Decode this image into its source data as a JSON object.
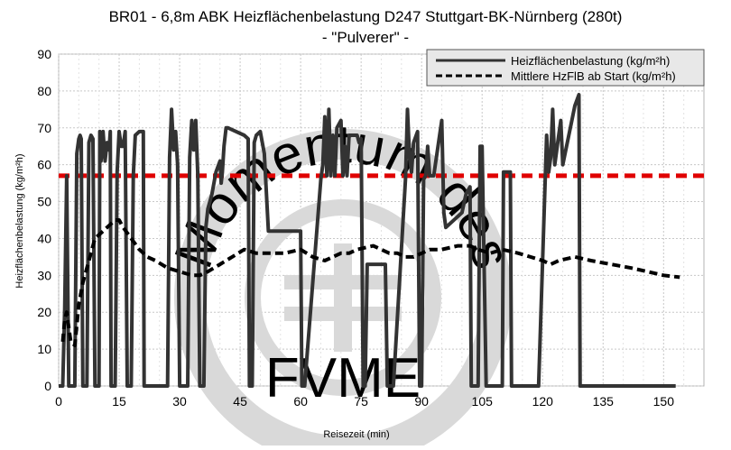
{
  "chart_data": {
    "type": "line",
    "title": "BR01 - 6,8m ABK Heizflächenbelastung D247 Stuttgart-BK-Nürnberg (280t)",
    "subtitle": "- \"Pulverer\" -",
    "xlabel": "Reisezeit (min)",
    "ylabel": "Heizflächenbelastung (kg/m²h)",
    "xlim": [
      0,
      160
    ],
    "ylim": [
      0,
      90
    ],
    "x_ticks": [
      0,
      15,
      30,
      45,
      60,
      75,
      90,
      105,
      120,
      135,
      150
    ],
    "y_ticks": [
      0,
      10,
      20,
      30,
      40,
      50,
      60,
      70,
      80,
      90
    ],
    "grid": true,
    "legend_position": "top-right",
    "reference_line": {
      "y": 57,
      "color": "#e00000",
      "style": "dashed"
    },
    "series": [
      {
        "name": "Heizflächenbelastung (kg/m²h)",
        "color": "#333333",
        "style": "solid",
        "points": [
          [
            0,
            0
          ],
          [
            1,
            0
          ],
          [
            1.5,
            21
          ],
          [
            2,
            57
          ],
          [
            2.5,
            0
          ],
          [
            4,
            0
          ],
          [
            4.5,
            63
          ],
          [
            5,
            67
          ],
          [
            5.3,
            68
          ],
          [
            5.6,
            67
          ],
          [
            6,
            0
          ],
          [
            7,
            0
          ],
          [
            7.5,
            66
          ],
          [
            8,
            68
          ],
          [
            8.5,
            67
          ],
          [
            9,
            0
          ],
          [
            10,
            0
          ],
          [
            10.2,
            69
          ],
          [
            10.5,
            61
          ],
          [
            11,
            69
          ],
          [
            11.5,
            61
          ],
          [
            12,
            66
          ],
          [
            12.5,
            64
          ],
          [
            12.8,
            69
          ],
          [
            13,
            0
          ],
          [
            14,
            0
          ],
          [
            14.5,
            58
          ],
          [
            15,
            69
          ],
          [
            15.5,
            65
          ],
          [
            16,
            65
          ],
          [
            16.5,
            69
          ],
          [
            17,
            0
          ],
          [
            18,
            0
          ],
          [
            18.5,
            57
          ],
          [
            19,
            68
          ],
          [
            20,
            69
          ],
          [
            21,
            69
          ],
          [
            21.2,
            0
          ],
          [
            27,
            0
          ],
          [
            27.5,
            62
          ],
          [
            28,
            75
          ],
          [
            28.5,
            64
          ],
          [
            29,
            69
          ],
          [
            29.5,
            60
          ],
          [
            30,
            0
          ],
          [
            32,
            0
          ],
          [
            32.5,
            62
          ],
          [
            33,
            72
          ],
          [
            33.5,
            64
          ],
          [
            34,
            72
          ],
          [
            34.5,
            57
          ],
          [
            35,
            0
          ],
          [
            36,
            0
          ],
          [
            36.5,
            43
          ],
          [
            37,
            48
          ],
          [
            38,
            52
          ],
          [
            39,
            58
          ],
          [
            40,
            61
          ],
          [
            40.3,
            55
          ],
          [
            40.6,
            58
          ],
          [
            41,
            65
          ],
          [
            41.5,
            70
          ],
          [
            42,
            70
          ],
          [
            46,
            68
          ],
          [
            47,
            67
          ],
          [
            47.3,
            0
          ],
          [
            48,
            0
          ],
          [
            48.5,
            66
          ],
          [
            49,
            68
          ],
          [
            50,
            69
          ],
          [
            51,
            63
          ],
          [
            52,
            42
          ],
          [
            60,
            42
          ],
          [
            60.3,
            0
          ],
          [
            61,
            0
          ],
          [
            65,
            56
          ],
          [
            65.5,
            60
          ],
          [
            66,
            73
          ],
          [
            66.5,
            57
          ],
          [
            67,
            75
          ],
          [
            67.5,
            57
          ],
          [
            68,
            68
          ],
          [
            68.5,
            57
          ],
          [
            69,
            70
          ],
          [
            70,
            72
          ],
          [
            70.5,
            57
          ],
          [
            71,
            65
          ],
          [
            71.5,
            57
          ],
          [
            72,
            68
          ],
          [
            73,
            68
          ],
          [
            74,
            68
          ],
          [
            74.5,
            66
          ],
          [
            75,
            67
          ],
          [
            75.5,
            0
          ],
          [
            76,
            0
          ],
          [
            76.5,
            33
          ],
          [
            81,
            33
          ],
          [
            81.5,
            0
          ],
          [
            83,
            0
          ],
          [
            86,
            56
          ],
          [
            86.5,
            75
          ],
          [
            87,
            62
          ],
          [
            87.5,
            58
          ],
          [
            88,
            66
          ],
          [
            89,
            69
          ],
          [
            89.5,
            0
          ],
          [
            90,
            0
          ],
          [
            90.5,
            56
          ],
          [
            91,
            57
          ],
          [
            91.5,
            65
          ],
          [
            92,
            57
          ],
          [
            93,
            57
          ],
          [
            95,
            72
          ],
          [
            95.5,
            47
          ],
          [
            96,
            43
          ],
          [
            100,
            47
          ],
          [
            101,
            52
          ],
          [
            102,
            54
          ],
          [
            102.3,
            0
          ],
          [
            104,
            0
          ],
          [
            104.5,
            65
          ],
          [
            105,
            65
          ],
          [
            106,
            0
          ],
          [
            110,
            0
          ],
          [
            110.3,
            58
          ],
          [
            112,
            58
          ],
          [
            112.3,
            0
          ],
          [
            119,
            0
          ],
          [
            121,
            68
          ],
          [
            121.5,
            58
          ],
          [
            122,
            62
          ],
          [
            122.5,
            75
          ],
          [
            123,
            60
          ],
          [
            124,
            68
          ],
          [
            124.5,
            72
          ],
          [
            125,
            60
          ],
          [
            128,
            76
          ],
          [
            129,
            79
          ],
          [
            129.3,
            0
          ],
          [
            153,
            0
          ]
        ]
      },
      {
        "name": "Mittlere HzFlB ab Start (kg/m²h)",
        "color": "#000000",
        "style": "dashed",
        "points": [
          [
            1,
            12
          ],
          [
            1.5,
            18
          ],
          [
            2,
            20
          ],
          [
            3,
            12
          ],
          [
            4,
            11
          ],
          [
            5,
            22
          ],
          [
            6,
            28
          ],
          [
            7,
            32
          ],
          [
            8,
            36
          ],
          [
            9,
            40
          ],
          [
            10,
            41
          ],
          [
            11,
            42
          ],
          [
            12,
            43
          ],
          [
            13,
            44
          ],
          [
            14,
            45
          ],
          [
            15,
            45
          ],
          [
            16,
            43
          ],
          [
            18,
            40
          ],
          [
            20,
            37
          ],
          [
            22,
            35
          ],
          [
            24,
            34
          ],
          [
            27,
            32
          ],
          [
            30,
            31
          ],
          [
            33,
            30
          ],
          [
            35,
            30
          ],
          [
            37,
            31
          ],
          [
            40,
            33
          ],
          [
            43,
            35
          ],
          [
            46,
            37
          ],
          [
            49,
            36
          ],
          [
            52,
            36
          ],
          [
            56,
            36
          ],
          [
            60,
            37
          ],
          [
            63,
            35
          ],
          [
            66,
            34
          ],
          [
            68,
            35
          ],
          [
            70,
            36
          ],
          [
            72,
            36
          ],
          [
            74,
            37
          ],
          [
            78,
            38
          ],
          [
            80,
            37
          ],
          [
            82,
            36
          ],
          [
            84,
            36
          ],
          [
            86,
            35
          ],
          [
            88,
            35
          ],
          [
            90,
            36
          ],
          [
            92,
            37
          ],
          [
            95,
            37
          ],
          [
            99,
            38
          ],
          [
            102,
            38
          ],
          [
            104,
            37
          ],
          [
            107,
            36
          ],
          [
            110,
            37
          ],
          [
            114,
            36
          ],
          [
            117,
            35
          ],
          [
            120,
            34
          ],
          [
            122,
            33
          ],
          [
            124,
            34
          ],
          [
            128,
            35
          ],
          [
            132,
            34
          ],
          [
            137,
            33
          ],
          [
            142,
            32
          ],
          [
            146,
            31
          ],
          [
            150,
            30
          ],
          [
            154,
            29.5
          ]
        ]
      }
    ]
  },
  "watermark": {
    "text_top": "Momentum des",
    "text_bottom": "FVME",
    "color": "#d9d9d9"
  }
}
